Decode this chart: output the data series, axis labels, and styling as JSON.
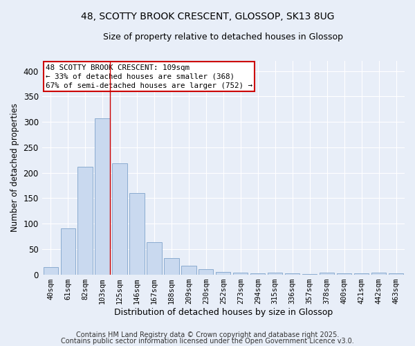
{
  "title_line1": "48, SCOTTY BROOK CRESCENT, GLOSSOP, SK13 8UG",
  "title_line2": "Size of property relative to detached houses in Glossop",
  "xlabel": "Distribution of detached houses by size in Glossop",
  "ylabel": "Number of detached properties",
  "bar_labels": [
    "40sqm",
    "61sqm",
    "82sqm",
    "103sqm",
    "125sqm",
    "146sqm",
    "167sqm",
    "188sqm",
    "209sqm",
    "230sqm",
    "252sqm",
    "273sqm",
    "294sqm",
    "315sqm",
    "336sqm",
    "357sqm",
    "378sqm",
    "400sqm",
    "421sqm",
    "442sqm",
    "463sqm"
  ],
  "bar_values": [
    15,
    90,
    212,
    307,
    218,
    160,
    64,
    32,
    17,
    10,
    5,
    4,
    2,
    3,
    2,
    1,
    4,
    2,
    2,
    3,
    2
  ],
  "bar_color": "#c9d9ef",
  "bar_edge_color": "#8aabcf",
  "red_line_index": 3.42,
  "annotation_title": "48 SCOTTY BROOK CRESCENT: 109sqm",
  "annotation_line2": "← 33% of detached houses are smaller (368)",
  "annotation_line3": "67% of semi-detached houses are larger (752) →",
  "annotation_box_color": "#ffffff",
  "annotation_box_edge": "#cc0000",
  "red_line_color": "#cc0000",
  "background_color": "#e8eef8",
  "grid_color": "#ffffff",
  "ylim": [
    0,
    420
  ],
  "yticks": [
    0,
    50,
    100,
    150,
    200,
    250,
    300,
    350,
    400
  ],
  "footer_line1": "Contains HM Land Registry data © Crown copyright and database right 2025.",
  "footer_line2": "Contains public sector information licensed under the Open Government Licence v3.0."
}
